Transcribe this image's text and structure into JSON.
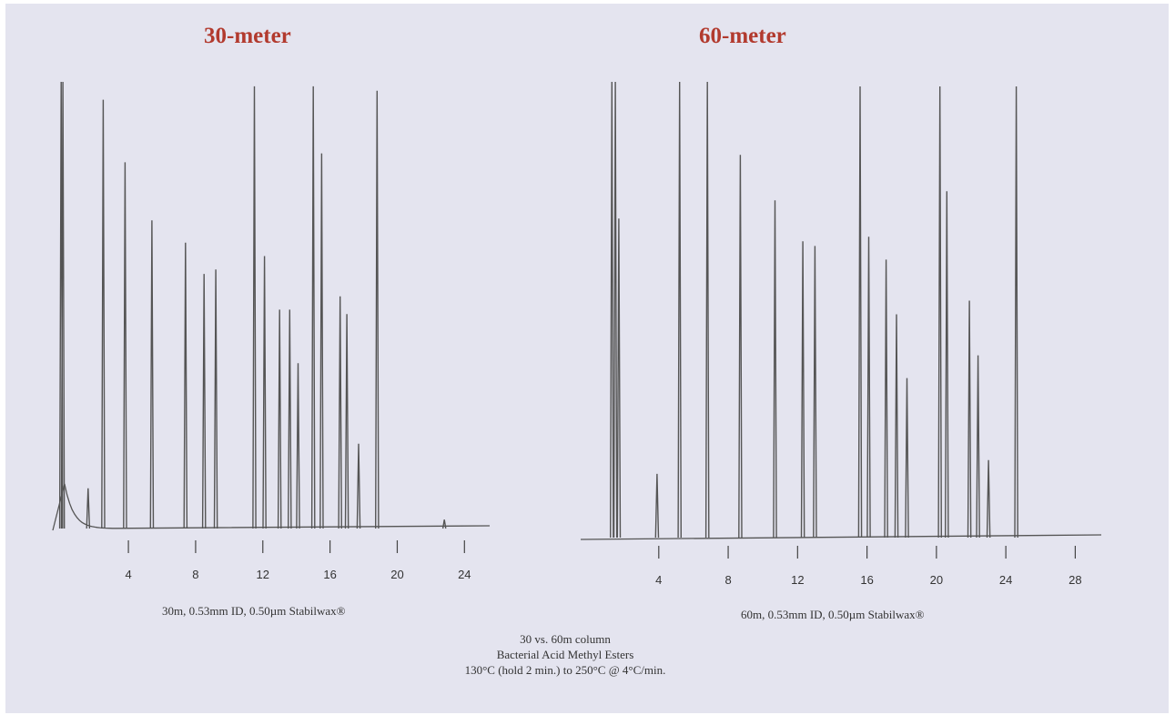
{
  "chart_data": [
    {
      "type": "line",
      "title": "30-meter",
      "column_label": "30m, 0.53mm ID, 0.50µm  Stabilwax®",
      "xticks": [
        4,
        8,
        12,
        16,
        20,
        24
      ],
      "xlim": [
        -0.5,
        25.5
      ],
      "ylim": [
        0,
        100
      ],
      "line_color": "#555555",
      "peaks": [
        {
          "x": 0.0,
          "y": 100
        },
        {
          "x": 0.1,
          "y": 100
        },
        {
          "x": 1.6,
          "y": 9
        },
        {
          "x": 2.5,
          "y": 96
        },
        {
          "x": 3.8,
          "y": 82
        },
        {
          "x": 5.4,
          "y": 69
        },
        {
          "x": 7.4,
          "y": 64
        },
        {
          "x": 8.5,
          "y": 57
        },
        {
          "x": 9.2,
          "y": 58
        },
        {
          "x": 11.5,
          "y": 99
        },
        {
          "x": 12.1,
          "y": 61
        },
        {
          "x": 13.0,
          "y": 49
        },
        {
          "x": 13.6,
          "y": 49
        },
        {
          "x": 14.1,
          "y": 37
        },
        {
          "x": 15.0,
          "y": 99
        },
        {
          "x": 15.5,
          "y": 84
        },
        {
          "x": 16.6,
          "y": 52
        },
        {
          "x": 17.0,
          "y": 48
        },
        {
          "x": 17.7,
          "y": 19
        },
        {
          "x": 18.8,
          "y": 98
        },
        {
          "x": 22.8,
          "y": 2
        }
      ]
    },
    {
      "type": "line",
      "title": "60-meter",
      "column_label": "60m, 0.53mm ID, 0.50µm  Stabilwax®",
      "xticks": [
        4,
        8,
        12,
        16,
        20,
        24,
        28
      ],
      "xlim": [
        -0.5,
        29.5
      ],
      "ylim": [
        0,
        100
      ],
      "line_color": "#555555",
      "peaks": [
        {
          "x": 1.3,
          "y": 100
        },
        {
          "x": 1.5,
          "y": 100
        },
        {
          "x": 1.7,
          "y": 70
        },
        {
          "x": 3.9,
          "y": 14
        },
        {
          "x": 5.2,
          "y": 100
        },
        {
          "x": 6.8,
          "y": 100
        },
        {
          "x": 8.7,
          "y": 84
        },
        {
          "x": 10.7,
          "y": 74
        },
        {
          "x": 12.3,
          "y": 65
        },
        {
          "x": 13.0,
          "y": 64
        },
        {
          "x": 15.6,
          "y": 99
        },
        {
          "x": 16.1,
          "y": 66
        },
        {
          "x": 17.1,
          "y": 61
        },
        {
          "x": 17.7,
          "y": 49
        },
        {
          "x": 18.3,
          "y": 35
        },
        {
          "x": 20.2,
          "y": 99
        },
        {
          "x": 20.6,
          "y": 76
        },
        {
          "x": 21.9,
          "y": 52
        },
        {
          "x": 22.4,
          "y": 40
        },
        {
          "x": 23.0,
          "y": 17
        },
        {
          "x": 24.6,
          "y": 99
        }
      ]
    }
  ],
  "footnote": {
    "line1": "30 vs. 60m column",
    "line2": "Bacterial Acid Methyl Esters",
    "line3": "130°C (hold 2 min.) to 250°C @ 4°C/min."
  }
}
